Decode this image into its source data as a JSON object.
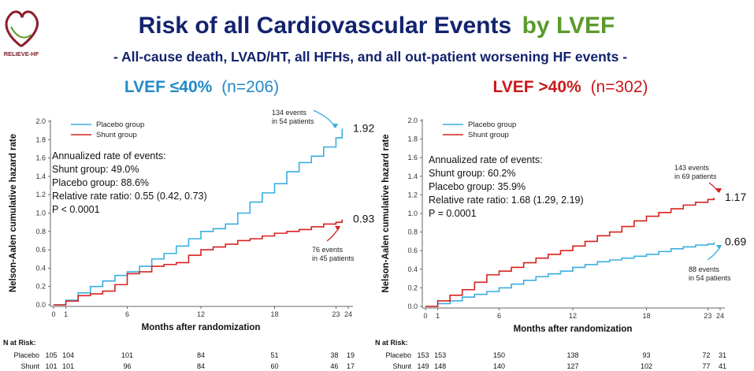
{
  "logo": {
    "text": "RELIEVE-HF"
  },
  "title": {
    "main": "Risk of all Cardiovascular Events",
    "accent": "by LVEF"
  },
  "subtitle": "- All-cause death, LVAD/HT, all HFHs, and all out-patient worsening HF events -",
  "colors": {
    "title": "#13236e",
    "accent": "#5a9a2c",
    "placebo": "#3aaee0",
    "shunt": "#d6231f",
    "left_head": "#2389c7",
    "right_head": "#c8191c"
  },
  "chart_data": [
    {
      "type": "line",
      "heading": {
        "bold": "LVEF ≤40%",
        "n": "(n=206)"
      },
      "ylabel": "Nelson-Aalen cumulative hazard rate",
      "xlabel": "Months after randomization",
      "xlim": [
        0,
        24
      ],
      "ylim": [
        0,
        2.0
      ],
      "xticks": [
        0,
        1,
        6,
        12,
        18,
        23,
        24
      ],
      "yticks": [
        "0.0",
        "0.2",
        "0.4",
        "0.6",
        "0.8",
        "1.0",
        "1.2",
        "1.4",
        "1.6",
        "1.8",
        "2.0"
      ],
      "legend": {
        "placement": "top-left",
        "entries": [
          "Placebo group",
          "Shunt group"
        ]
      },
      "series": [
        {
          "name": "Placebo group",
          "color": "#3aaee0",
          "x": [
            0,
            1,
            2,
            3,
            4,
            5,
            6,
            7,
            8,
            9,
            10,
            11,
            12,
            13,
            14,
            15,
            16,
            17,
            18,
            19,
            20,
            21,
            22,
            23,
            23.5
          ],
          "y": [
            0.0,
            0.05,
            0.13,
            0.2,
            0.26,
            0.32,
            0.36,
            0.42,
            0.5,
            0.56,
            0.64,
            0.72,
            0.8,
            0.83,
            0.88,
            1.0,
            1.12,
            1.22,
            1.32,
            1.45,
            1.55,
            1.62,
            1.72,
            1.82,
            1.92
          ]
        },
        {
          "name": "Shunt group",
          "color": "#d6231f",
          "x": [
            0,
            1,
            2,
            3,
            4,
            5,
            6,
            7,
            8,
            9,
            10,
            11,
            12,
            13,
            14,
            15,
            16,
            17,
            18,
            19,
            20,
            21,
            22,
            23,
            23.5
          ],
          "y": [
            0.0,
            0.04,
            0.1,
            0.12,
            0.15,
            0.22,
            0.34,
            0.36,
            0.42,
            0.44,
            0.46,
            0.54,
            0.6,
            0.63,
            0.66,
            0.7,
            0.72,
            0.75,
            0.78,
            0.8,
            0.82,
            0.85,
            0.88,
            0.9,
            0.93
          ]
        }
      ],
      "end_values": {
        "placebo": "1.92",
        "shunt": "0.93"
      },
      "stats_lines": [
        "Annualized rate of events:",
        "Shunt group: 49.0%",
        "Placebo group: 88.6%",
        "Relative rate ratio: 0.55 (0.42, 0.73)",
        "P < 0.0001"
      ],
      "annotations": {
        "placebo": [
          "134 events",
          "in 54 patients"
        ],
        "shunt": [
          "76 events",
          "in 45 patients"
        ]
      },
      "risk_table": {
        "header": "N at Risk:",
        "rows": [
          {
            "label": "Placebo",
            "values": [
              "105",
              "104",
              "101",
              "84",
              "51",
              "38",
              "19"
            ]
          },
          {
            "label": "Shunt",
            "values": [
              "101",
              "101",
              "96",
              "84",
              "60",
              "46",
              "17"
            ]
          }
        ]
      }
    },
    {
      "type": "line",
      "heading": {
        "bold": "LVEF >40%",
        "n": "(n=302)"
      },
      "ylabel": "Nelson-Aalen cumulative hazard rate",
      "xlabel": "Months after randomization",
      "xlim": [
        0,
        24
      ],
      "ylim": [
        0,
        2.0
      ],
      "xticks": [
        0,
        1,
        6,
        12,
        18,
        23,
        24
      ],
      "yticks": [
        "0.0",
        "0.2",
        "0.4",
        "0.6",
        "0.8",
        "1.0",
        "1.2",
        "1.4",
        "1.6",
        "1.8",
        "2.0"
      ],
      "legend": {
        "placement": "top-left",
        "entries": [
          "Placebo group",
          "Shunt group"
        ]
      },
      "series": [
        {
          "name": "Placebo group",
          "color": "#3aaee0",
          "x": [
            0,
            1,
            2,
            3,
            4,
            5,
            6,
            7,
            8,
            9,
            10,
            11,
            12,
            13,
            14,
            15,
            16,
            17,
            18,
            19,
            20,
            21,
            22,
            23,
            23.5
          ],
          "y": [
            0.0,
            0.03,
            0.06,
            0.1,
            0.13,
            0.16,
            0.2,
            0.24,
            0.28,
            0.32,
            0.35,
            0.38,
            0.42,
            0.45,
            0.48,
            0.5,
            0.52,
            0.54,
            0.56,
            0.59,
            0.62,
            0.64,
            0.66,
            0.67,
            0.69
          ]
        },
        {
          "name": "Shunt group",
          "color": "#d6231f",
          "x": [
            0,
            1,
            2,
            3,
            4,
            5,
            6,
            7,
            8,
            9,
            10,
            11,
            12,
            13,
            14,
            15,
            16,
            17,
            18,
            19,
            20,
            21,
            22,
            23,
            23.5
          ],
          "y": [
            0.0,
            0.06,
            0.12,
            0.18,
            0.26,
            0.34,
            0.38,
            0.42,
            0.47,
            0.52,
            0.56,
            0.6,
            0.65,
            0.7,
            0.76,
            0.8,
            0.86,
            0.92,
            0.97,
            1.01,
            1.05,
            1.09,
            1.12,
            1.15,
            1.17
          ]
        }
      ],
      "end_values": {
        "placebo": "0.69",
        "shunt": "1.17"
      },
      "stats_lines": [
        "Annualized rate of events:",
        "Shunt group: 60.2%",
        "Placebo group: 35.9%",
        "Relative rate ratio: 1.68 (1.29, 2.19)",
        "P = 0.0001"
      ],
      "annotations": {
        "placebo": [
          "88 events",
          "in 54 patients"
        ],
        "shunt": [
          "143 events",
          "in 69 patients"
        ]
      },
      "risk_table": {
        "header": "N at Risk:",
        "rows": [
          {
            "label": "Placebo",
            "values": [
              "153",
              "153",
              "150",
              "138",
              "93",
              "72",
              "31"
            ]
          },
          {
            "label": "Shunt",
            "values": [
              "149",
              "148",
              "140",
              "127",
              "102",
              "77",
              "41"
            ]
          }
        ]
      }
    }
  ]
}
